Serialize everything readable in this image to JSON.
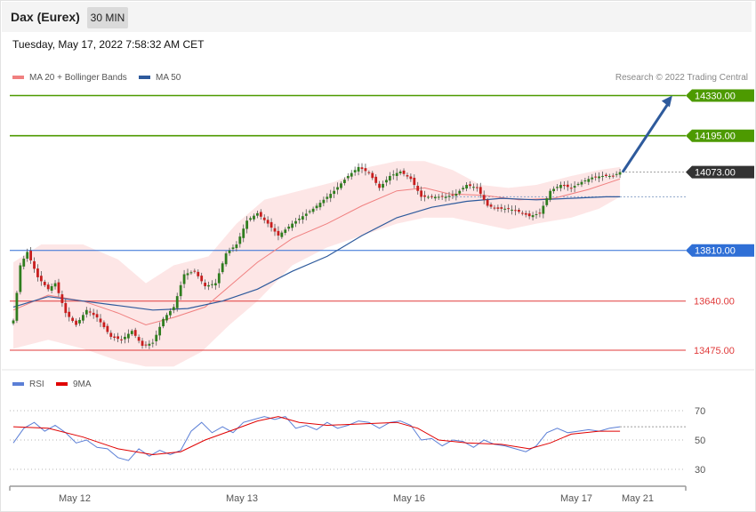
{
  "header": {
    "title": "Dax (Eurex)",
    "timeframe": "30 MIN",
    "datetime": "Tuesday, May 17, 2022 7:58:32 AM CET"
  },
  "legend": {
    "ma20_label": "MA 20 + Bollinger Bands",
    "ma50_label": "MA 50",
    "credit": "Research © 2022 Trading Central",
    "ma20_color": "#f08080",
    "ma50_color": "#2e5a9c"
  },
  "rsi_legend": {
    "rsi_label": "RSI",
    "ma_label": "9MA",
    "rsi_color": "#5b7fd6",
    "ma_color": "#e00000"
  },
  "chart_data": [
    {
      "type": "candlestick",
      "title": "",
      "ylim": [
        13420,
        14400
      ],
      "last_price": 14073.0,
      "levels": [
        {
          "value": 14330.0,
          "label": "14330.00",
          "kind": "resistance",
          "color": "#4d9a00"
        },
        {
          "value": 14195.0,
          "label": "14195.00",
          "kind": "resistance",
          "color": "#4d9a00"
        },
        {
          "value": 14073.0,
          "label": "14073.00",
          "kind": "last",
          "color": "#333333"
        },
        {
          "value": 13810.0,
          "label": "13810.00",
          "kind": "pivot",
          "color": "#2f6fd6"
        },
        {
          "value": 13640.0,
          "label": "13640.00",
          "kind": "support",
          "color": "#e03a3a"
        },
        {
          "value": 13475.0,
          "label": "13475.00",
          "kind": "support",
          "color": "#e03a3a"
        }
      ],
      "x_ticks": [
        "May 12",
        "May 13",
        "May 16",
        "May 17",
        "May 21"
      ],
      "close_path": [
        [
          0,
          13575
        ],
        [
          2,
          13760
        ],
        [
          4,
          13805
        ],
        [
          7,
          13720
        ],
        [
          10,
          13680
        ],
        [
          12,
          13700
        ],
        [
          15,
          13600
        ],
        [
          18,
          13560
        ],
        [
          21,
          13610
        ],
        [
          24,
          13585
        ],
        [
          28,
          13520
        ],
        [
          31,
          13510
        ],
        [
          34,
          13540
        ],
        [
          37,
          13490
        ],
        [
          40,
          13500
        ],
        [
          43,
          13580
        ],
        [
          46,
          13620
        ],
        [
          49,
          13730
        ],
        [
          52,
          13740
        ],
        [
          55,
          13690
        ],
        [
          58,
          13700
        ],
        [
          61,
          13800
        ],
        [
          64,
          13830
        ],
        [
          67,
          13910
        ],
        [
          70,
          13935
        ],
        [
          73,
          13900
        ],
        [
          76,
          13860
        ],
        [
          80,
          13900
        ],
        [
          83,
          13925
        ],
        [
          86,
          13950
        ],
        [
          89,
          13980
        ],
        [
          92,
          14010
        ],
        [
          96,
          14060
        ],
        [
          99,
          14090
        ],
        [
          102,
          14070
        ],
        [
          105,
          14020
        ],
        [
          108,
          14060
        ],
        [
          111,
          14075
        ],
        [
          114,
          14050
        ],
        [
          117,
          13990
        ],
        [
          120,
          13990
        ],
        [
          124,
          13990
        ],
        [
          127,
          14000
        ],
        [
          130,
          14030
        ],
        [
          133,
          14020
        ],
        [
          136,
          13960
        ],
        [
          139,
          13950
        ],
        [
          142,
          13950
        ],
        [
          145,
          13940
        ],
        [
          148,
          13925
        ],
        [
          151,
          13935
        ],
        [
          154,
          14010
        ],
        [
          157,
          14030
        ],
        [
          160,
          14020
        ],
        [
          163,
          14040
        ],
        [
          166,
          14055
        ],
        [
          169,
          14060
        ],
        [
          172,
          14060
        ],
        [
          174,
          14073
        ]
      ],
      "ma20_path": [
        [
          0,
          13610
        ],
        [
          10,
          13660
        ],
        [
          20,
          13640
        ],
        [
          30,
          13600
        ],
        [
          38,
          13560
        ],
        [
          46,
          13585
        ],
        [
          55,
          13620
        ],
        [
          62,
          13690
        ],
        [
          70,
          13770
        ],
        [
          80,
          13850
        ],
        [
          90,
          13900
        ],
        [
          100,
          13960
        ],
        [
          110,
          14010
        ],
        [
          118,
          14020
        ],
        [
          125,
          14000
        ],
        [
          135,
          13995
        ],
        [
          145,
          13980
        ],
        [
          155,
          13985
        ],
        [
          165,
          14015
        ],
        [
          174,
          14050
        ]
      ],
      "bb_upper_path": [
        [
          0,
          13770
        ],
        [
          8,
          13830
        ],
        [
          20,
          13830
        ],
        [
          30,
          13780
        ],
        [
          38,
          13700
        ],
        [
          46,
          13760
        ],
        [
          56,
          13790
        ],
        [
          64,
          13900
        ],
        [
          72,
          13980
        ],
        [
          82,
          14010
        ],
        [
          92,
          14040
        ],
        [
          102,
          14090
        ],
        [
          110,
          14110
        ],
        [
          118,
          14110
        ],
        [
          126,
          14080
        ],
        [
          134,
          14030
        ],
        [
          142,
          14020
        ],
        [
          150,
          14030
        ],
        [
          160,
          14060
        ],
        [
          168,
          14080
        ],
        [
          174,
          14090
        ]
      ],
      "bb_lower_path": [
        [
          0,
          13480
        ],
        [
          10,
          13510
        ],
        [
          20,
          13480
        ],
        [
          30,
          13440
        ],
        [
          38,
          13420
        ],
        [
          46,
          13420
        ],
        [
          54,
          13470
        ],
        [
          62,
          13560
        ],
        [
          70,
          13640
        ],
        [
          80,
          13760
        ],
        [
          90,
          13820
        ],
        [
          100,
          13860
        ],
        [
          110,
          13900
        ],
        [
          118,
          13920
        ],
        [
          126,
          13920
        ],
        [
          134,
          13900
        ],
        [
          142,
          13880
        ],
        [
          150,
          13900
        ],
        [
          160,
          13920
        ],
        [
          168,
          13950
        ],
        [
          174,
          13990
        ]
      ],
      "ma50_path": [
        [
          0,
          13620
        ],
        [
          10,
          13655
        ],
        [
          20,
          13640
        ],
        [
          30,
          13625
        ],
        [
          40,
          13610
        ],
        [
          50,
          13615
        ],
        [
          60,
          13640
        ],
        [
          70,
          13680
        ],
        [
          80,
          13740
        ],
        [
          90,
          13790
        ],
        [
          100,
          13860
        ],
        [
          110,
          13920
        ],
        [
          120,
          13955
        ],
        [
          130,
          13975
        ],
        [
          140,
          13985
        ],
        [
          150,
          13980
        ],
        [
          160,
          13985
        ],
        [
          170,
          13990
        ],
        [
          174,
          13990
        ]
      ],
      "projection": {
        "from": [
          174,
          14073
        ],
        "to": [
          189,
          14330
        ]
      }
    },
    {
      "type": "line",
      "title": "RSI",
      "ylim": [
        20,
        80
      ],
      "y_ticks": [
        70,
        50,
        30
      ],
      "rsi_path": [
        [
          0,
          48
        ],
        [
          3,
          58
        ],
        [
          6,
          62
        ],
        [
          9,
          56
        ],
        [
          12,
          60
        ],
        [
          15,
          55
        ],
        [
          18,
          48
        ],
        [
          21,
          50
        ],
        [
          24,
          45
        ],
        [
          27,
          44
        ],
        [
          30,
          38
        ],
        [
          33,
          36
        ],
        [
          36,
          44
        ],
        [
          39,
          39
        ],
        [
          42,
          43
        ],
        [
          45,
          40
        ],
        [
          48,
          43
        ],
        [
          51,
          56
        ],
        [
          54,
          62
        ],
        [
          57,
          55
        ],
        [
          60,
          59
        ],
        [
          63,
          55
        ],
        [
          66,
          62
        ],
        [
          69,
          64
        ],
        [
          72,
          66
        ],
        [
          75,
          64
        ],
        [
          78,
          66
        ],
        [
          81,
          58
        ],
        [
          84,
          60
        ],
        [
          87,
          57
        ],
        [
          90,
          62
        ],
        [
          93,
          58
        ],
        [
          96,
          60
        ],
        [
          99,
          63
        ],
        [
          102,
          62
        ],
        [
          105,
          58
        ],
        [
          108,
          62
        ],
        [
          111,
          63
        ],
        [
          114,
          60
        ],
        [
          117,
          50
        ],
        [
          120,
          51
        ],
        [
          123,
          46
        ],
        [
          126,
          50
        ],
        [
          129,
          49
        ],
        [
          132,
          45
        ],
        [
          135,
          50
        ],
        [
          138,
          47
        ],
        [
          141,
          46
        ],
        [
          144,
          44
        ],
        [
          147,
          42
        ],
        [
          150,
          46
        ],
        [
          153,
          55
        ],
        [
          156,
          58
        ],
        [
          159,
          55
        ],
        [
          162,
          56
        ],
        [
          165,
          57
        ],
        [
          168,
          56
        ],
        [
          171,
          58
        ],
        [
          174,
          59
        ]
      ],
      "ma9_path": [
        [
          0,
          59
        ],
        [
          10,
          58
        ],
        [
          20,
          52
        ],
        [
          30,
          44
        ],
        [
          40,
          40
        ],
        [
          48,
          42
        ],
        [
          55,
          50
        ],
        [
          62,
          56
        ],
        [
          70,
          63
        ],
        [
          76,
          66
        ],
        [
          82,
          62
        ],
        [
          90,
          60
        ],
        [
          100,
          61
        ],
        [
          110,
          62
        ],
        [
          116,
          58
        ],
        [
          122,
          50
        ],
        [
          130,
          48
        ],
        [
          140,
          47
        ],
        [
          148,
          44
        ],
        [
          154,
          48
        ],
        [
          160,
          54
        ],
        [
          168,
          56
        ],
        [
          174,
          56
        ]
      ]
    }
  ]
}
